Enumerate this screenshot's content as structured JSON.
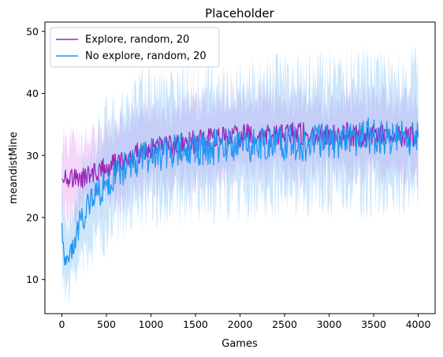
{
  "chart_data": {
    "type": "line",
    "title": "Placeholder",
    "xlabel": "Games",
    "ylabel": "meandistMine",
    "xlim": [
      -190,
      4190
    ],
    "ylim": [
      4.5,
      51.5
    ],
    "xticks": [
      0,
      500,
      1000,
      1500,
      2000,
      2500,
      3000,
      3500,
      4000
    ],
    "yticks": [
      10,
      20,
      30,
      40,
      50
    ],
    "grid": false,
    "legend_position": "top-left",
    "series": [
      {
        "name": "Explore, random, 20",
        "color": "#9b27b8",
        "band_color": "#d36be6",
        "x": [
          0,
          100,
          200,
          300,
          400,
          500,
          600,
          700,
          800,
          900,
          1000,
          1200,
          1400,
          1600,
          1800,
          2000,
          2200,
          2400,
          2600,
          2800,
          3000,
          3200,
          3400,
          3600,
          3800,
          4000
        ],
        "values": [
          27,
          26.5,
          26,
          26.8,
          27.5,
          28,
          28.5,
          29,
          30,
          30.5,
          31,
          31.5,
          32,
          32.5,
          33,
          33,
          33.5,
          33,
          33.5,
          33.5,
          33,
          33.5,
          33,
          33.5,
          33,
          33
        ],
        "lower": [
          22,
          21.5,
          21.5,
          22,
          22.5,
          23,
          23,
          23.5,
          24,
          25,
          25.5,
          26,
          26.5,
          27,
          27,
          27.5,
          27.5,
          27.5,
          27.5,
          27.5,
          27.5,
          27.5,
          27.5,
          27.5,
          27.5,
          27.5
        ],
        "upper": [
          33,
          32.5,
          32,
          32.5,
          33,
          33.5,
          34,
          34.5,
          35.5,
          36,
          36.5,
          37,
          38,
          38.5,
          38.5,
          39,
          39.5,
          39,
          39,
          39,
          38.5,
          39,
          38.5,
          39,
          38.5,
          38.5
        ]
      },
      {
        "name": "No explore, random, 20",
        "color": "#2196f3",
        "band_color": "#86c4f5",
        "x": [
          0,
          25,
          50,
          100,
          150,
          200,
          300,
          400,
          500,
          600,
          700,
          800,
          900,
          1000,
          1200,
          1400,
          1600,
          1800,
          2000,
          2200,
          2400,
          2600,
          2800,
          3000,
          3200,
          3400,
          3600,
          3800,
          4000
        ],
        "values": [
          20,
          13,
          12.5,
          14,
          16,
          19,
          22,
          24,
          25.5,
          27,
          28,
          29,
          29.5,
          30,
          30.5,
          31,
          31,
          31.5,
          31.5,
          32,
          32,
          32,
          32,
          32.5,
          32.5,
          33,
          33,
          33,
          33
        ],
        "lower": [
          12,
          9,
          8.5,
          9.5,
          11,
          13,
          15,
          17,
          18,
          19.5,
          20.5,
          21.5,
          22,
          22.5,
          23,
          23,
          23.5,
          23.5,
          24,
          24,
          24,
          24,
          24,
          24.5,
          24,
          24.5,
          24.5,
          24.5,
          24.5
        ],
        "upper": [
          28,
          20,
          18,
          20,
          22,
          26,
          30,
          33,
          35,
          37,
          38,
          39,
          39.5,
          40,
          40.5,
          41,
          41,
          41.5,
          41.5,
          42,
          42,
          42.5,
          42,
          42.5,
          43,
          43.5,
          43,
          43,
          43
        ]
      }
    ]
  }
}
